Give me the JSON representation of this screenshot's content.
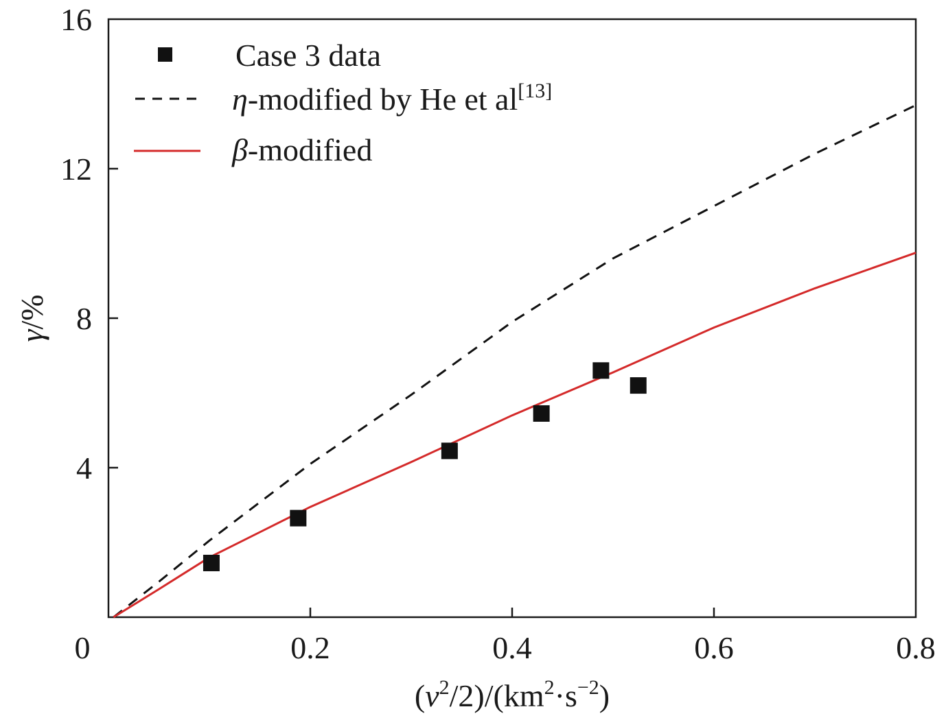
{
  "chart_data": {
    "type": "scatter",
    "title": "",
    "xlabel": {
      "pre": "(",
      "v": "v",
      "sup2": "2",
      "mid": "/2)/(km",
      "sup3": "2",
      "post_dot": "·s",
      "sup4": "−2",
      "close": ")"
    },
    "ylabel": {
      "gamma": "γ",
      "rest": "/%"
    },
    "xlim": [
      0,
      0.8
    ],
    "ylim": [
      0,
      16
    ],
    "xticks": [
      0,
      0.2,
      0.4,
      0.6,
      0.8
    ],
    "xtick_labels": [
      "0",
      "0.2",
      "0.4",
      "0.6",
      "0.8"
    ],
    "yticks": [
      4,
      8,
      12,
      16
    ],
    "ytick_labels": [
      "4",
      "8",
      "12",
      "16"
    ],
    "grid": false,
    "legend_position": "top-left",
    "series": [
      {
        "name": "Case 3 data",
        "kind": "scatter",
        "marker": "square",
        "color": "#111111",
        "points": [
          [
            0.102,
            1.45
          ],
          [
            0.188,
            2.65
          ],
          [
            0.338,
            4.45
          ],
          [
            0.429,
            5.45
          ],
          [
            0.488,
            6.6
          ],
          [
            0.525,
            6.2
          ]
        ]
      },
      {
        "name": "η-modified by He et al[13]",
        "kind": "line",
        "style": "dashed",
        "color": "#111111",
        "points": [
          [
            0.005,
            0.0
          ],
          [
            0.05,
            0.95
          ],
          [
            0.1,
            2.05
          ],
          [
            0.2,
            4.1
          ],
          [
            0.3,
            5.95
          ],
          [
            0.4,
            7.9
          ],
          [
            0.5,
            9.6
          ],
          [
            0.6,
            11.0
          ],
          [
            0.7,
            12.4
          ],
          [
            0.8,
            13.7
          ]
        ]
      },
      {
        "name": "β-modified",
        "kind": "line",
        "style": "solid",
        "color": "#d42a2a",
        "points": [
          [
            0.005,
            0.0
          ],
          [
            0.05,
            0.75
          ],
          [
            0.1,
            1.6
          ],
          [
            0.2,
            2.95
          ],
          [
            0.3,
            4.15
          ],
          [
            0.4,
            5.4
          ],
          [
            0.5,
            6.55
          ],
          [
            0.6,
            7.75
          ],
          [
            0.7,
            8.8
          ],
          [
            0.8,
            9.75
          ]
        ]
      }
    ],
    "legend": {
      "entry1": "Case 3 data",
      "entry2_symbol": "η",
      "entry2_text": "-modified by He et al",
      "entry2_ref": "[13]",
      "entry3_symbol": "β",
      "entry3_text": "-modified"
    }
  }
}
